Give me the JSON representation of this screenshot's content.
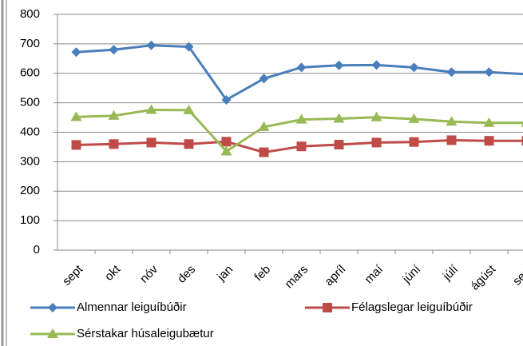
{
  "chart_data": {
    "type": "line",
    "categories": [
      "sept",
      "okt",
      "nóv",
      "des",
      "jan",
      "feb",
      "mars",
      "apríl",
      "maí",
      "júní",
      "júlí",
      "ágúst",
      "sept"
    ],
    "series": [
      {
        "name": "Almennar leiguíbúðir",
        "color": "#4a7ebb",
        "marker": "diamond",
        "values": [
          672,
          680,
          695,
          690,
          510,
          582,
          620,
          627,
          628,
          620,
          604,
          604,
          597
        ]
      },
      {
        "name": "Félagslegar leiguíbúðir",
        "color": "#be4b48",
        "marker": "square",
        "values": [
          357,
          360,
          365,
          360,
          368,
          332,
          352,
          358,
          365,
          367,
          373,
          371,
          371
        ]
      },
      {
        "name": "Sérstakar húsaleigubætur",
        "color": "#98b954",
        "marker": "triangle",
        "values": [
          452,
          456,
          476,
          475,
          335,
          418,
          443,
          446,
          451,
          445,
          436,
          432,
          432
        ]
      }
    ],
    "ylim": [
      0,
      800
    ],
    "yticks": [
      0,
      100,
      200,
      300,
      400,
      500,
      600,
      700,
      800
    ],
    "grid": true
  }
}
